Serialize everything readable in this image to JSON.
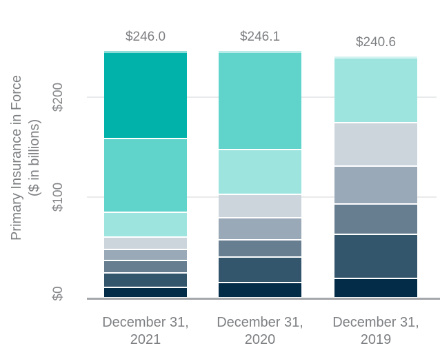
{
  "chart_data": {
    "type": "bar",
    "subtype": "stacked-vertical",
    "title": "",
    "ylabel_line1": "Primary Insurance in Force",
    "ylabel_line2": "($ in billions)",
    "xlabel": "",
    "categories": [
      {
        "line1": "December 31,",
        "line2": "2021"
      },
      {
        "line1": "December 31,",
        "line2": "2020"
      },
      {
        "line1": "December 31,",
        "line2": "2019"
      }
    ],
    "totals": [
      "$246.0",
      "$246.1",
      "$240.6"
    ],
    "yticks": [
      {
        "label": "$0",
        "value": 0
      },
      {
        "label": "$100",
        "value": 100
      },
      {
        "label": "$200",
        "value": 200
      }
    ],
    "ylim": [
      0,
      260
    ],
    "grid": "horizontal",
    "legend": "none",
    "values_note": "segment values in $ billions, estimated from pixel heights; stacked bottom-to-top",
    "series": [
      {
        "name": "segment-1-navy",
        "color": "#022c48",
        "values": [
          10,
          15,
          19
        ]
      },
      {
        "name": "segment-2-dark-blue",
        "color": "#33566d",
        "values": [
          14.5,
          25.5,
          44
        ]
      },
      {
        "name": "segment-3-slate",
        "color": "#677e91",
        "values": [
          12,
          17,
          30
        ]
      },
      {
        "name": "segment-4-gray-blue",
        "color": "#99a9b7",
        "values": [
          11,
          22,
          38
        ]
      },
      {
        "name": "segment-5-light-gray",
        "color": "#cdd5dc",
        "values": [
          12.5,
          23.5,
          43.6
        ]
      },
      {
        "name": "segment-6-pale-teal",
        "color": "#9de4df",
        "values": [
          25,
          45,
          66
        ]
      },
      {
        "name": "segment-7-medium-teal",
        "color": "#60d3cb",
        "values": [
          74,
          98.1,
          0
        ]
      },
      {
        "name": "segment-8-dark-teal",
        "color": "#00b2a9",
        "values": [
          87,
          0,
          0
        ]
      }
    ],
    "colors": {
      "grid": "#e9eaeb",
      "axis_line": "#a5a7aa",
      "text": "#7d7f82",
      "segment_divider": "#ffffff"
    }
  }
}
